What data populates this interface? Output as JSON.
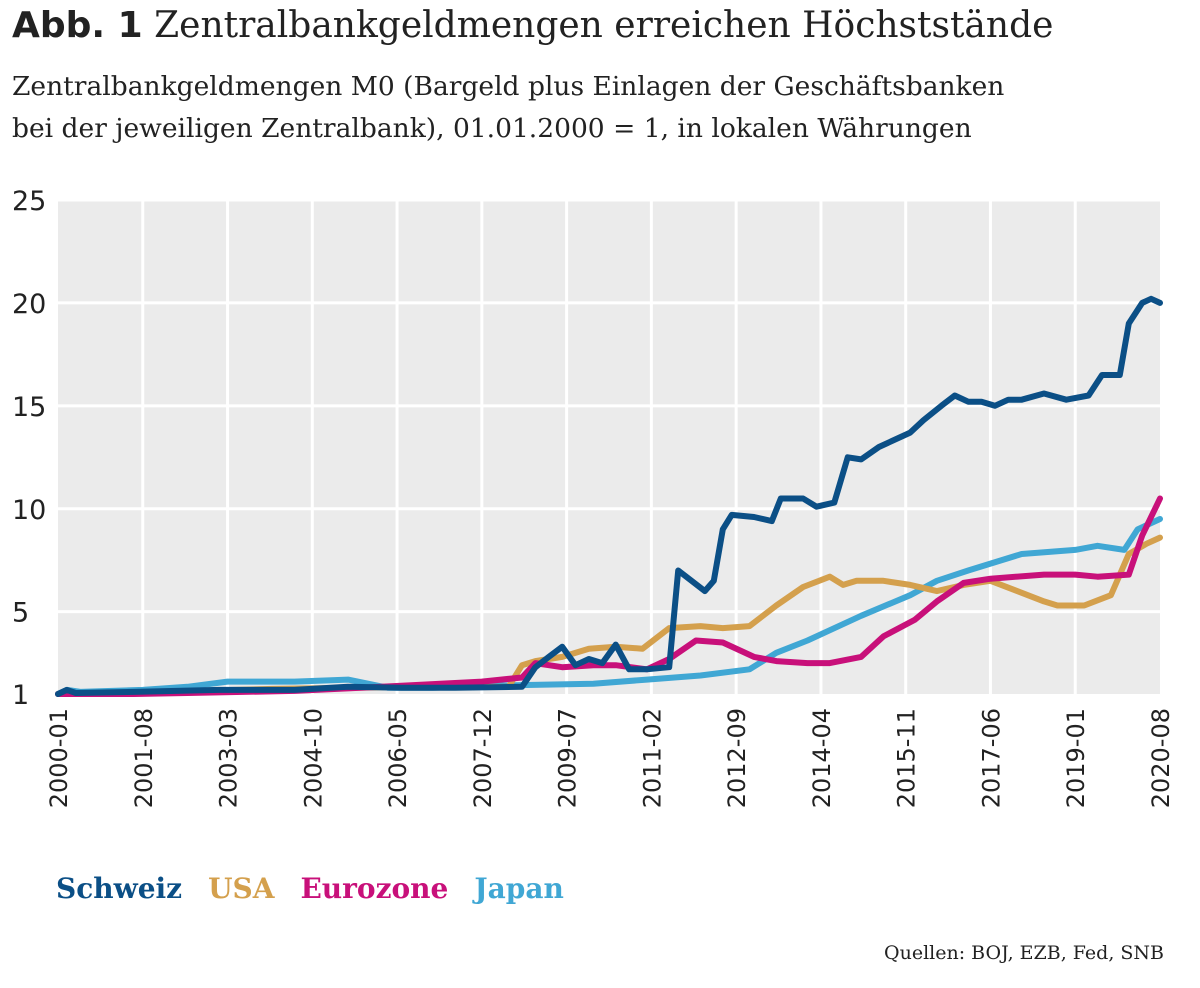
{
  "title_prefix": "Abb. 1",
  "title": "Zentralbankgeldmengen erreichen Höchststände",
  "subtitle_line1": "Zentralbankgeldmengen M0 (Bargeld plus Einlagen der Geschäftsbanken",
  "subtitle_line2": "bei der jeweiligen Zentralbank), 01.01.2000 = 1, in lokalen Währungen",
  "source": "Quellen: BOJ, EZB, Fed, SNB",
  "colors": {
    "Schweiz": "#0b4f86",
    "USA": "#d4a04d",
    "Eurozone": "#c8107a",
    "Japan": "#40a7d4"
  },
  "chart_data": {
    "type": "line",
    "title": "",
    "xlabel": "",
    "ylabel": "",
    "ylim": [
      1,
      25
    ],
    "xlim": [
      "2000-01",
      "2020-08"
    ],
    "yticks": [
      1,
      5,
      10,
      15,
      20,
      25
    ],
    "xticks": [
      "2000-01",
      "2001-08",
      "2003-03",
      "2004-10",
      "2006-05",
      "2007-12",
      "2009-07",
      "2011-02",
      "2012-09",
      "2014-04",
      "2015-11",
      "2017-06",
      "2019-01",
      "2020-08"
    ],
    "grid": true,
    "legend": "bottom-left",
    "series": [
      {
        "name": "Schweiz",
        "points": [
          [
            "2000-01",
            1.0
          ],
          [
            "2000-03",
            1.2
          ],
          [
            "2000-05",
            1.05
          ],
          [
            "2001-06",
            1.1
          ],
          [
            "2003-01",
            1.2
          ],
          [
            "2004-06",
            1.2
          ],
          [
            "2005-06",
            1.35
          ],
          [
            "2006-06",
            1.3
          ],
          [
            "2007-06",
            1.3
          ],
          [
            "2008-09",
            1.35
          ],
          [
            "2008-12",
            2.3
          ],
          [
            "2009-03",
            2.8
          ],
          [
            "2009-06",
            3.3
          ],
          [
            "2009-09",
            2.4
          ],
          [
            "2009-12",
            2.7
          ],
          [
            "2010-03",
            2.5
          ],
          [
            "2010-06",
            3.4
          ],
          [
            "2010-09",
            2.2
          ],
          [
            "2011-01",
            2.2
          ],
          [
            "2011-06",
            2.3
          ],
          [
            "2011-08",
            7.0
          ],
          [
            "2011-11",
            6.5
          ],
          [
            "2012-02",
            6.0
          ],
          [
            "2012-04",
            6.5
          ],
          [
            "2012-06",
            9.0
          ],
          [
            "2012-08",
            9.7
          ],
          [
            "2013-01",
            9.6
          ],
          [
            "2013-05",
            9.4
          ],
          [
            "2013-07",
            10.5
          ],
          [
            "2013-12",
            10.5
          ],
          [
            "2014-03",
            10.1
          ],
          [
            "2014-07",
            10.3
          ],
          [
            "2014-10",
            12.5
          ],
          [
            "2015-01",
            12.4
          ],
          [
            "2015-05",
            13.0
          ],
          [
            "2015-12",
            13.7
          ],
          [
            "2016-03",
            14.3
          ],
          [
            "2016-07",
            15.0
          ],
          [
            "2016-10",
            15.5
          ],
          [
            "2017-01",
            15.2
          ],
          [
            "2017-04",
            15.2
          ],
          [
            "2017-07",
            15.0
          ],
          [
            "2017-10",
            15.3
          ],
          [
            "2018-01",
            15.3
          ],
          [
            "2018-06",
            15.6
          ],
          [
            "2018-11",
            15.3
          ],
          [
            "2019-04",
            15.5
          ],
          [
            "2019-07",
            16.5
          ],
          [
            "2019-11",
            16.5
          ],
          [
            "2020-01",
            19.0
          ],
          [
            "2020-04",
            20.0
          ],
          [
            "2020-06",
            20.2
          ],
          [
            "2020-08",
            20.0
          ]
        ]
      },
      {
        "name": "USA",
        "points": [
          [
            "2000-01",
            1.0
          ],
          [
            "2002-01",
            1.12
          ],
          [
            "2004-01",
            1.25
          ],
          [
            "2006-01",
            1.32
          ],
          [
            "2008-06",
            1.35
          ],
          [
            "2008-09",
            2.4
          ],
          [
            "2008-12",
            2.6
          ],
          [
            "2009-06",
            2.8
          ],
          [
            "2009-12",
            3.2
          ],
          [
            "2010-06",
            3.3
          ],
          [
            "2010-12",
            3.2
          ],
          [
            "2011-06",
            4.2
          ],
          [
            "2012-01",
            4.3
          ],
          [
            "2012-06",
            4.2
          ],
          [
            "2012-12",
            4.3
          ],
          [
            "2013-06",
            5.3
          ],
          [
            "2013-12",
            6.2
          ],
          [
            "2014-06",
            6.7
          ],
          [
            "2014-09",
            6.3
          ],
          [
            "2014-12",
            6.5
          ],
          [
            "2015-06",
            6.5
          ],
          [
            "2015-12",
            6.3
          ],
          [
            "2016-06",
            6.0
          ],
          [
            "2016-12",
            6.3
          ],
          [
            "2017-06",
            6.5
          ],
          [
            "2017-12",
            6.0
          ],
          [
            "2018-06",
            5.5
          ],
          [
            "2018-09",
            5.3
          ],
          [
            "2019-03",
            5.3
          ],
          [
            "2019-09",
            5.8
          ],
          [
            "2020-01",
            7.8
          ],
          [
            "2020-05",
            8.3
          ],
          [
            "2020-08",
            8.6
          ]
        ]
      },
      {
        "name": "Eurozone",
        "points": [
          [
            "2000-01",
            1.0
          ],
          [
            "2001-06",
            1.0
          ],
          [
            "2002-06",
            1.05
          ],
          [
            "2004-06",
            1.15
          ],
          [
            "2006-06",
            1.4
          ],
          [
            "2007-12",
            1.6
          ],
          [
            "2008-09",
            1.8
          ],
          [
            "2008-12",
            2.5
          ],
          [
            "2009-06",
            2.3
          ],
          [
            "2010-01",
            2.4
          ],
          [
            "2010-06",
            2.4
          ],
          [
            "2011-01",
            2.2
          ],
          [
            "2011-06",
            2.7
          ],
          [
            "2011-12",
            3.6
          ],
          [
            "2012-06",
            3.5
          ],
          [
            "2013-01",
            2.8
          ],
          [
            "2013-06",
            2.6
          ],
          [
            "2014-01",
            2.5
          ],
          [
            "2014-06",
            2.5
          ],
          [
            "2015-01",
            2.8
          ],
          [
            "2015-06",
            3.8
          ],
          [
            "2016-01",
            4.6
          ],
          [
            "2016-06",
            5.5
          ],
          [
            "2016-12",
            6.4
          ],
          [
            "2017-06",
            6.6
          ],
          [
            "2018-06",
            6.8
          ],
          [
            "2019-01",
            6.8
          ],
          [
            "2019-06",
            6.7
          ],
          [
            "2020-01",
            6.8
          ],
          [
            "2020-04",
            8.7
          ],
          [
            "2020-08",
            10.5
          ]
        ]
      },
      {
        "name": "Japan",
        "points": [
          [
            "2000-01",
            1.0
          ],
          [
            "2000-03",
            1.2
          ],
          [
            "2000-06",
            1.1
          ],
          [
            "2001-08",
            1.2
          ],
          [
            "2002-06",
            1.35
          ],
          [
            "2003-03",
            1.6
          ],
          [
            "2004-06",
            1.6
          ],
          [
            "2005-06",
            1.7
          ],
          [
            "2006-03",
            1.3
          ],
          [
            "2007-01",
            1.3
          ],
          [
            "2008-01",
            1.4
          ],
          [
            "2009-01",
            1.45
          ],
          [
            "2010-01",
            1.5
          ],
          [
            "2011-01",
            1.7
          ],
          [
            "2012-01",
            1.9
          ],
          [
            "2012-12",
            2.2
          ],
          [
            "2013-06",
            3.0
          ],
          [
            "2014-01",
            3.6
          ],
          [
            "2015-01",
            4.8
          ],
          [
            "2015-12",
            5.8
          ],
          [
            "2016-06",
            6.5
          ],
          [
            "2017-01",
            7.0
          ],
          [
            "2018-01",
            7.8
          ],
          [
            "2019-01",
            8.0
          ],
          [
            "2019-06",
            8.2
          ],
          [
            "2019-12",
            8.0
          ],
          [
            "2020-03",
            9.0
          ],
          [
            "2020-08",
            9.5
          ]
        ]
      }
    ]
  }
}
